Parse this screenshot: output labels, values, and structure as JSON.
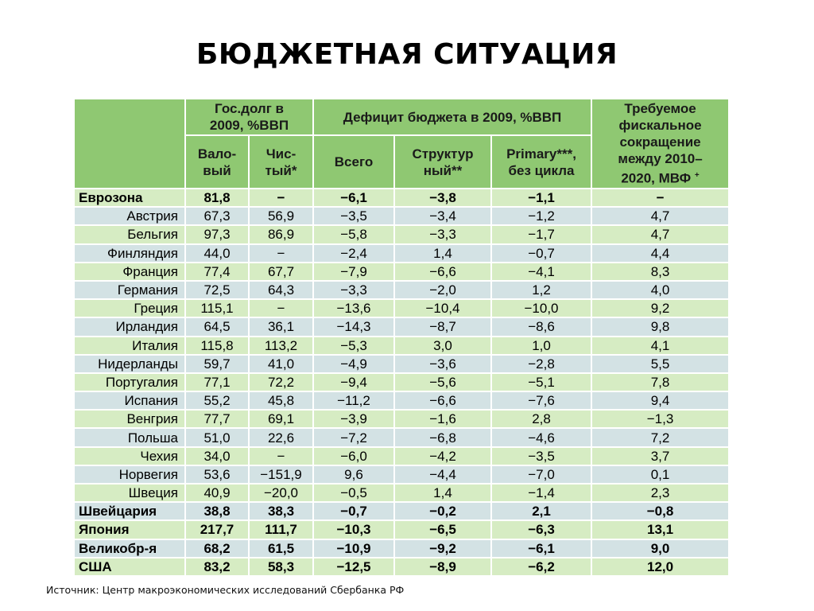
{
  "title": "БЮДЖЕТНАЯ СИТУАЦИЯ",
  "header": {
    "debt_group": "Гос.долг в 2009, %ВВП",
    "deficit_group": "Дефицит бюджета в 2009, %ВВП",
    "fiscal": "Требуемое фискальное сокращение между 2010–2020, МВФ",
    "fiscal_mark": "+",
    "gross": "Вало-вый",
    "net": "Чис-тый*",
    "total": "Всего",
    "structural": "Структур ный**",
    "primary": "Primary***, без цикла"
  },
  "rows": [
    {
      "country": "Еврозона",
      "gross": "81,8",
      "net": "−",
      "total": "−6,1",
      "structural": "−3,8",
      "primary": "−1,1",
      "fiscal": "−"
    },
    {
      "country": "Австрия",
      "gross": "67,3",
      "net": "56,9",
      "total": "−3,5",
      "structural": "−3,4",
      "primary": "−1,2",
      "fiscal": "4,7"
    },
    {
      "country": "Бельгия",
      "gross": "97,3",
      "net": "86,9",
      "total": "−5,8",
      "structural": "−3,3",
      "primary": "−1,7",
      "fiscal": "4,7"
    },
    {
      "country": "Финляндия",
      "gross": "44,0",
      "net": "−",
      "total": "−2,4",
      "structural": "1,4",
      "primary": "−0,7",
      "fiscal": "4,4"
    },
    {
      "country": "Франция",
      "gross": "77,4",
      "net": "67,7",
      "total": "−7,9",
      "structural": "−6,6",
      "primary": "−4,1",
      "fiscal": "8,3"
    },
    {
      "country": "Германия",
      "gross": "72,5",
      "net": "64,3",
      "total": "−3,3",
      "structural": "−2,0",
      "primary": "1,2",
      "fiscal": "4,0"
    },
    {
      "country": "Греция",
      "gross": "115,1",
      "net": "−",
      "total": "−13,6",
      "structural": "−10,4",
      "primary": "−10,0",
      "fiscal": "9,2"
    },
    {
      "country": "Ирландия",
      "gross": "64,5",
      "net": "36,1",
      "total": "−14,3",
      "structural": "−8,7",
      "primary": "−8,6",
      "fiscal": "9,8"
    },
    {
      "country": "Италия",
      "gross": "115,8",
      "net": "113,2",
      "total": "−5,3",
      "structural": "3,0",
      "primary": "1,0",
      "fiscal": "4,1"
    },
    {
      "country": "Нидерланды",
      "gross": "59,7",
      "net": "41,0",
      "total": "−4,9",
      "structural": "−3,6",
      "primary": "−2,8",
      "fiscal": "5,5"
    },
    {
      "country": "Португалия",
      "gross": "77,1",
      "net": "72,2",
      "total": "−9,4",
      "structural": "−5,6",
      "primary": "−5,1",
      "fiscal": "7,8"
    },
    {
      "country": "Испания",
      "gross": "55,2",
      "net": "45,8",
      "total": "−11,2",
      "structural": "−6,6",
      "primary": "−7,6",
      "fiscal": "9,4"
    },
    {
      "country": "Венгрия",
      "gross": "77,7",
      "net": "69,1",
      "total": "−3,9",
      "structural": "−1,6",
      "primary": "2,8",
      "fiscal": "−1,3"
    },
    {
      "country": "Польша",
      "gross": "51,0",
      "net": "22,6",
      "total": "−7,2",
      "structural": "−6,8",
      "primary": "−4,6",
      "fiscal": "7,2"
    },
    {
      "country": "Чехия",
      "gross": "34,0",
      "net": "−",
      "total": "−6,0",
      "structural": "−4,2",
      "primary": "−3,5",
      "fiscal": "3,7"
    },
    {
      "country": "Норвегия",
      "gross": "53,6",
      "net": "−151,9",
      "total": "9,6",
      "structural": "−4,4",
      "primary": "−7,0",
      "fiscal": "0,1"
    },
    {
      "country": "Швеция",
      "gross": "40,9",
      "net": "−20,0",
      "total": "−0,5",
      "structural": "1,4",
      "primary": "−1,4",
      "fiscal": "2,3"
    },
    {
      "country": "Швейцария",
      "gross": "38,8",
      "net": "38,3",
      "total": "−0,7",
      "structural": "−0,2",
      "primary": "2,1",
      "fiscal": "−0,8"
    },
    {
      "country": "Япония",
      "gross": "217,7",
      "net": "111,7",
      "total": "−10,3",
      "structural": "−6,5",
      "primary": "−6,3",
      "fiscal": "13,1"
    },
    {
      "country": "Великобр-я",
      "gross": "68,2",
      "net": "61,5",
      "total": "−10,9",
      "structural": "−9,2",
      "primary": "−6,1",
      "fiscal": "9,0"
    },
    {
      "country": "США",
      "gross": "83,2",
      "net": "58,3",
      "total": "−12,5",
      "structural": "−8,9",
      "primary": "−6,2",
      "fiscal": "12,0"
    }
  ],
  "source": "Источник: Центр макроэкономических исследований Сбербанка РФ"
}
